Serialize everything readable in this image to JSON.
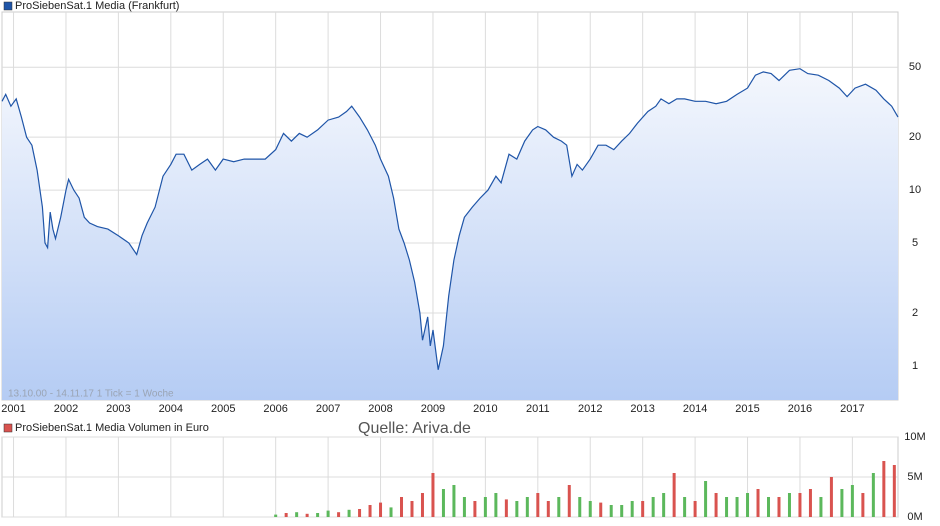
{
  "chart_data": [
    {
      "type": "line",
      "log_scale": true,
      "grid": true,
      "annotations": [
        "13.10.00 - 14.11.17   1 Tick = 1 Woche",
        "Quelle: Ariva.de"
      ],
      "xlim": [
        2000.78,
        2017.87
      ],
      "xticks": [
        2001,
        2002,
        2003,
        2004,
        2005,
        2006,
        2007,
        2008,
        2009,
        2010,
        2011,
        2012,
        2013,
        2014,
        2015,
        2016,
        2017
      ],
      "ylim": [
        0.64,
        103
      ],
      "yticks": [
        1,
        2,
        5,
        10,
        20,
        50
      ],
      "x": [
        2000.78,
        2000.85,
        2000.95,
        2001.05,
        2001.15,
        2001.25,
        2001.35,
        2001.45,
        2001.55,
        2001.6,
        2001.65,
        2001.7,
        2001.75,
        2001.8,
        2001.9,
        2002.0,
        2002.05,
        2002.15,
        2002.25,
        2002.35,
        2002.45,
        2002.6,
        2002.8,
        2003.0,
        2003.2,
        2003.35,
        2003.45,
        2003.55,
        2003.7,
        2003.85,
        2004.0,
        2004.1,
        2004.25,
        2004.4,
        2004.55,
        2004.7,
        2004.85,
        2005.0,
        2005.2,
        2005.4,
        2005.6,
        2005.8,
        2006.0,
        2006.15,
        2006.3,
        2006.45,
        2006.6,
        2006.8,
        2007.0,
        2007.2,
        2007.35,
        2007.45,
        2007.6,
        2007.75,
        2007.9,
        2008.0,
        2008.15,
        2008.25,
        2008.35,
        2008.45,
        2008.55,
        2008.65,
        2008.75,
        2008.8,
        2008.9,
        2008.95,
        2009.0,
        2009.1,
        2009.2,
        2009.3,
        2009.4,
        2009.5,
        2009.6,
        2009.75,
        2009.9,
        2010.05,
        2010.2,
        2010.3,
        2010.45,
        2010.6,
        2010.75,
        2010.9,
        2011.0,
        2011.15,
        2011.3,
        2011.45,
        2011.55,
        2011.65,
        2011.75,
        2011.85,
        2012.0,
        2012.15,
        2012.3,
        2012.45,
        2012.6,
        2012.75,
        2012.9,
        2013.1,
        2013.25,
        2013.35,
        2013.5,
        2013.65,
        2013.8,
        2014.0,
        2014.2,
        2014.4,
        2014.6,
        2014.8,
        2015.0,
        2015.15,
        2015.3,
        2015.45,
        2015.6,
        2015.8,
        2016.0,
        2016.15,
        2016.35,
        2016.55,
        2016.75,
        2016.9,
        2017.05,
        2017.25,
        2017.45,
        2017.6,
        2017.75,
        2017.87
      ],
      "series": [
        {
          "name": "ProSiebenSat.1 Media (Frankfurt)",
          "color": "#1f55a8",
          "values": [
            32,
            35,
            30,
            33,
            26,
            20,
            18,
            13,
            8,
            5,
            4.7,
            7.5,
            6,
            5.3,
            7,
            10,
            11.5,
            10,
            9,
            7,
            6.5,
            6.2,
            6,
            5.5,
            5,
            4.3,
            5.5,
            6.5,
            8,
            12,
            14,
            16,
            16,
            13,
            14,
            15,
            13,
            15,
            14.5,
            15,
            15,
            15,
            17,
            21,
            19,
            21,
            20,
            22,
            25,
            26,
            28,
            30,
            26,
            22,
            18,
            15,
            12,
            9,
            6,
            5,
            4,
            3,
            2,
            1.4,
            1.9,
            1.3,
            1.6,
            0.95,
            1.3,
            2.5,
            4,
            5.5,
            7,
            8,
            9,
            10,
            12,
            11,
            16,
            15,
            19,
            22,
            23,
            22,
            20,
            19,
            18,
            12,
            14,
            13,
            15,
            18,
            18,
            17,
            19,
            21,
            24,
            28,
            30,
            33,
            31,
            33,
            33,
            32,
            32,
            31,
            32,
            35,
            38,
            45,
            47,
            46,
            42,
            48,
            49,
            46,
            45,
            42,
            38,
            34,
            38,
            40,
            37,
            33,
            30,
            26
          ]
        }
      ]
    },
    {
      "type": "bar",
      "grid": true,
      "xlim": [
        2000.78,
        2017.87
      ],
      "ylim": [
        0,
        10000000
      ],
      "yticks": [
        {
          "value": 0,
          "label": "0M"
        },
        {
          "value": 5000000,
          "label": "5M"
        },
        {
          "value": 10000000,
          "label": "10M"
        }
      ],
      "x": [
        2006.0,
        2006.2,
        2006.4,
        2006.6,
        2006.8,
        2007.0,
        2007.2,
        2007.4,
        2007.6,
        2007.8,
        2008.0,
        2008.2,
        2008.4,
        2008.6,
        2008.8,
        2009.0,
        2009.2,
        2009.4,
        2009.6,
        2009.8,
        2010.0,
        2010.2,
        2010.4,
        2010.6,
        2010.8,
        2011.0,
        2011.2,
        2011.4,
        2011.6,
        2011.8,
        2012.0,
        2012.2,
        2012.4,
        2012.6,
        2012.8,
        2013.0,
        2013.2,
        2013.4,
        2013.6,
        2013.8,
        2014.0,
        2014.2,
        2014.4,
        2014.6,
        2014.8,
        2015.0,
        2015.2,
        2015.4,
        2015.6,
        2015.8,
        2016.0,
        2016.2,
        2016.4,
        2016.6,
        2016.8,
        2017.0,
        2017.2,
        2017.4,
        2017.6,
        2017.8
      ],
      "series": [
        {
          "name": "ProSiebenSat.1 Media Volumen in Euro",
          "color": "#d9534f",
          "bar_colors": [
            "#5cb85c",
            "#d9534f",
            "#5cb85c",
            "#d9534f",
            "#5cb85c",
            "#5cb85c",
            "#d9534f",
            "#5cb85c",
            "#d9534f",
            "#d9534f",
            "#d9534f",
            "#5cb85c",
            "#d9534f",
            "#d9534f",
            "#d9534f",
            "#d9534f",
            "#5cb85c",
            "#5cb85c",
            "#5cb85c",
            "#d9534f",
            "#5cb85c",
            "#5cb85c",
            "#d9534f",
            "#5cb85c",
            "#5cb85c",
            "#d9534f",
            "#d9534f",
            "#5cb85c",
            "#d9534f",
            "#5cb85c",
            "#5cb85c",
            "#d9534f",
            "#5cb85c",
            "#5cb85c",
            "#5cb85c",
            "#d9534f",
            "#5cb85c",
            "#5cb85c",
            "#d9534f",
            "#5cb85c",
            "#d9534f",
            "#5cb85c",
            "#d9534f",
            "#5cb85c",
            "#5cb85c",
            "#5cb85c",
            "#d9534f",
            "#5cb85c",
            "#d9534f",
            "#5cb85c",
            "#d9534f",
            "#d9534f",
            "#5cb85c",
            "#d9534f",
            "#5cb85c",
            "#5cb85c",
            "#d9534f",
            "#5cb85c",
            "#d9534f",
            "#d9534f"
          ],
          "values": [
            300000,
            500000,
            600000,
            400000,
            500000,
            800000,
            600000,
            900000,
            1000000,
            1500000,
            1800000,
            1200000,
            2500000,
            2000000,
            3000000,
            5500000,
            3500000,
            4000000,
            2500000,
            2000000,
            2500000,
            3000000,
            2200000,
            2000000,
            2500000,
            3000000,
            2000000,
            2500000,
            4000000,
            2500000,
            2000000,
            1800000,
            1500000,
            1500000,
            2000000,
            2000000,
            2500000,
            3000000,
            5500000,
            2500000,
            2000000,
            4500000,
            3000000,
            2500000,
            2500000,
            3000000,
            3500000,
            2500000,
            2500000,
            3000000,
            3000000,
            3500000,
            2500000,
            5000000,
            3500000,
            4000000,
            3000000,
            5500000,
            7000000,
            6500000
          ]
        }
      ]
    }
  ]
}
